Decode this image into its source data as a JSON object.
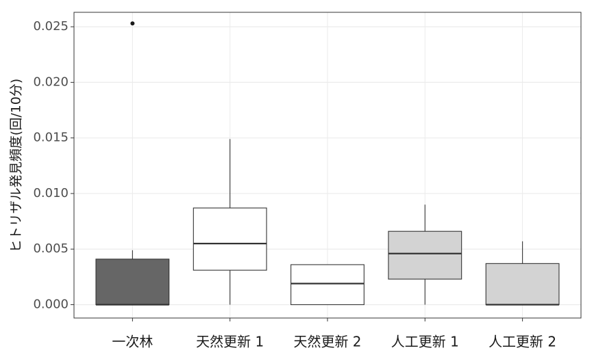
{
  "chart_data": {
    "type": "box",
    "y_label": "ヒトリザル発見頻度(回/10分)",
    "categories": [
      "一次林",
      "天然更新 1",
      "天然更新 2",
      "人工更新 1",
      "人工更新 2"
    ],
    "boxes": [
      {
        "low": 0,
        "q1": 0,
        "median": 0,
        "q3": 0.0041,
        "high": 0.0049,
        "outliers": [
          0.0253
        ],
        "color": "#666666"
      },
      {
        "low": 0,
        "q1": 0.0031,
        "median": 0.0055,
        "q3": 0.0087,
        "high": 0.0149,
        "outliers": [],
        "color": "#ffffff"
      },
      {
        "low": 0,
        "q1": 0,
        "median": 0.0019,
        "q3": 0.0036,
        "high": 0.0036,
        "outliers": [],
        "color": "#ffffff"
      },
      {
        "low": 0,
        "q1": 0.0023,
        "median": 0.0046,
        "q3": 0.0066,
        "high": 0.009,
        "outliers": [],
        "color": "#d3d3d3"
      },
      {
        "low": 0,
        "q1": 0,
        "median": 0,
        "q3": 0.0037,
        "high": 0.0057,
        "outliers": [],
        "color": "#d3d3d3"
      }
    ],
    "ylim": [
      -0.0012,
      0.0263
    ],
    "yticks": [
      {
        "value": 0,
        "label": "0.000"
      },
      {
        "value": 0.005,
        "label": "0.005"
      },
      {
        "value": 0.01,
        "label": "0.010"
      },
      {
        "value": 0.015,
        "label": "0.015"
      },
      {
        "value": 0.02,
        "label": "0.020"
      },
      {
        "value": 0.025,
        "label": "0.025"
      }
    ],
    "grid": true
  }
}
